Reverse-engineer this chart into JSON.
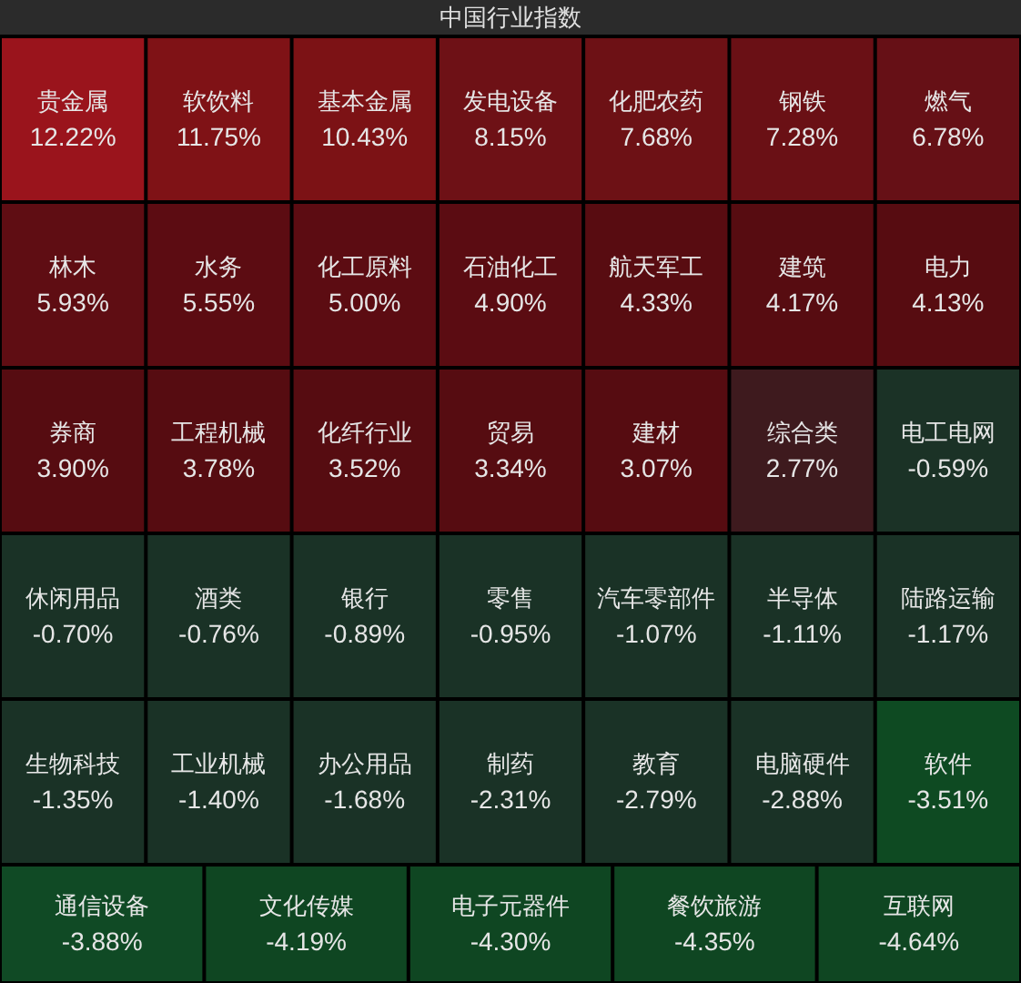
{
  "chart_data": {
    "type": "other",
    "title": "中国行业指数",
    "categories": [
      "贵金属",
      "软饮料",
      "基本金属",
      "发电设备",
      "化肥农药",
      "钢铁",
      "燃气",
      "林木",
      "水务",
      "化工原料",
      "石油化工",
      "航天军工",
      "建筑",
      "电力",
      "券商",
      "工程机械",
      "化纤行业",
      "贸易",
      "建材",
      "综合类",
      "电工电网",
      "休闲用品",
      "酒类",
      "银行",
      "零售",
      "汽车零部件",
      "半导体",
      "陆路运输",
      "生物科技",
      "工业机械",
      "办公用品",
      "制药",
      "教育",
      "电脑硬件",
      "软件",
      "通信设备",
      "文化传媒",
      "电子元器件",
      "餐饮旅游",
      "互联网"
    ],
    "values": [
      12.22,
      11.75,
      10.43,
      8.15,
      7.68,
      7.28,
      6.78,
      5.93,
      5.55,
      5.0,
      4.9,
      4.33,
      4.17,
      4.13,
      3.9,
      3.78,
      3.52,
      3.34,
      3.07,
      2.77,
      -0.59,
      -0.7,
      -0.76,
      -0.89,
      -0.95,
      -1.07,
      -1.11,
      -1.17,
      -1.35,
      -1.4,
      -1.68,
      -2.31,
      -2.79,
      -2.88,
      -3.51,
      -3.88,
      -4.19,
      -4.3,
      -4.35,
      -4.64
    ],
    "value_labels": [
      "12.22%",
      "11.75%",
      "10.43%",
      "8.15%",
      "7.68%",
      "7.28%",
      "6.78%",
      "5.93%",
      "5.55%",
      "5.00%",
      "4.90%",
      "4.33%",
      "4.17%",
      "4.13%",
      "3.90%",
      "3.78%",
      "3.52%",
      "3.34%",
      "3.07%",
      "2.77%",
      "-0.59%",
      "-0.70%",
      "-0.76%",
      "-0.89%",
      "-0.95%",
      "-1.07%",
      "-1.11%",
      "-1.17%",
      "-1.35%",
      "-1.40%",
      "-1.68%",
      "-2.31%",
      "-2.79%",
      "-2.88%",
      "-3.51%",
      "-3.88%",
      "-4.19%",
      "-4.30%",
      "-4.35%",
      "-4.64%"
    ],
    "colors": [
      "#9a141c",
      "#7f1216",
      "#7c1215",
      "#6e1116",
      "#6d1115",
      "#6a1015",
      "#661016",
      "#5f0d13",
      "#5c0c12",
      "#5c0c12",
      "#5b0c12",
      "#580c11",
      "#570c11",
      "#570c11",
      "#560c11",
      "#560c11",
      "#560c11",
      "#560c11",
      "#560c11",
      "#3e1a1e",
      "#1b3226",
      "#1a3226",
      "#1a3226",
      "#1a3226",
      "#1a3226",
      "#1a3226",
      "#1a3226",
      "#1a3226",
      "#1a3226",
      "#1a3226",
      "#1a3226",
      "#1a3226",
      "#1a3226",
      "#1a3226",
      "#0e4a22",
      "#104a25",
      "#0f4622",
      "#0f4622",
      "#0f4622",
      "#0f4622"
    ]
  }
}
